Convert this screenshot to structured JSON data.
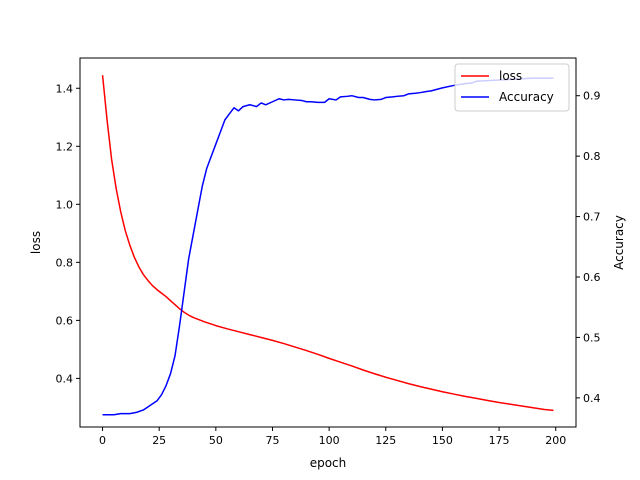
{
  "chart_data": {
    "type": "line",
    "title": "",
    "xlabel": "epoch",
    "ylabel": "loss",
    "y2label": "Accuracy",
    "xlim": [
      -9.95,
      208.95
    ],
    "ylim": [
      0.2325,
      1.5043
    ],
    "y2lim": [
      0.3518,
      0.9624
    ],
    "xticks": [
      0,
      25,
      50,
      75,
      100,
      125,
      150,
      175,
      200
    ],
    "yticks": [
      0.4,
      0.6,
      0.8,
      1.0,
      1.2,
      1.4
    ],
    "y2ticks": [
      0.4,
      0.5,
      0.6,
      0.7,
      0.8,
      0.9
    ],
    "xtick_labels": [
      "0",
      "25",
      "50",
      "75",
      "100",
      "125",
      "150",
      "175",
      "200"
    ],
    "ytick_labels": [
      "0.4",
      "0.6",
      "0.8",
      "1.0",
      "1.2",
      "1.4"
    ],
    "y2tick_labels": [
      "0.4",
      "0.5",
      "0.6",
      "0.7",
      "0.8",
      "0.9"
    ],
    "legend": {
      "placement": "top-right"
    },
    "series": [
      {
        "name": "loss",
        "axis": "left",
        "color": "#ff0000",
        "x": [
          0,
          2,
          4,
          6,
          8,
          10,
          12,
          14,
          16,
          18,
          20,
          22,
          24,
          26,
          28,
          30,
          32,
          34,
          36,
          38,
          40,
          45,
          50,
          55,
          60,
          65,
          70,
          75,
          80,
          85,
          90,
          95,
          100,
          105,
          110,
          115,
          120,
          125,
          130,
          135,
          140,
          145,
          150,
          155,
          160,
          165,
          170,
          175,
          180,
          185,
          190,
          195,
          199
        ],
        "y": [
          1.445,
          1.29,
          1.155,
          1.055,
          0.975,
          0.91,
          0.86,
          0.818,
          0.785,
          0.758,
          0.738,
          0.72,
          0.706,
          0.694,
          0.682,
          0.668,
          0.654,
          0.64,
          0.628,
          0.618,
          0.61,
          0.595,
          0.582,
          0.571,
          0.561,
          0.551,
          0.541,
          0.531,
          0.52,
          0.508,
          0.496,
          0.483,
          0.469,
          0.456,
          0.443,
          0.429,
          0.416,
          0.404,
          0.393,
          0.382,
          0.372,
          0.363,
          0.354,
          0.346,
          0.338,
          0.331,
          0.324,
          0.317,
          0.311,
          0.305,
          0.299,
          0.293,
          0.29
        ]
      },
      {
        "name": "Accuracy",
        "axis": "right",
        "color": "#0000ff",
        "x": [
          0,
          5,
          8,
          12,
          15,
          18,
          20,
          22,
          24,
          26,
          28,
          30,
          32,
          34,
          36,
          38,
          40,
          42,
          44,
          46,
          48,
          50,
          52,
          54,
          56,
          58,
          60,
          62,
          65,
          68,
          70,
          72,
          75,
          78,
          80,
          82,
          85,
          88,
          90,
          92,
          95,
          98,
          100,
          103,
          105,
          108,
          110,
          113,
          115,
          118,
          120,
          123,
          125,
          128,
          130,
          133,
          135,
          138,
          140,
          143,
          145,
          150,
          155,
          160,
          163,
          165,
          170,
          175,
          180,
          185,
          190,
          195,
          199
        ],
        "y": [
          0.372,
          0.372,
          0.374,
          0.374,
          0.376,
          0.38,
          0.385,
          0.39,
          0.395,
          0.405,
          0.42,
          0.44,
          0.47,
          0.52,
          0.575,
          0.63,
          0.67,
          0.71,
          0.75,
          0.78,
          0.8,
          0.82,
          0.84,
          0.86,
          0.87,
          0.88,
          0.875,
          0.882,
          0.885,
          0.882,
          0.888,
          0.885,
          0.89,
          0.895,
          0.893,
          0.894,
          0.893,
          0.892,
          0.89,
          0.89,
          0.889,
          0.889,
          0.895,
          0.893,
          0.898,
          0.899,
          0.9,
          0.897,
          0.897,
          0.894,
          0.893,
          0.894,
          0.897,
          0.898,
          0.899,
          0.9,
          0.903,
          0.904,
          0.905,
          0.907,
          0.908,
          0.913,
          0.917,
          0.92,
          0.921,
          0.924,
          0.925,
          0.926,
          0.927,
          0.928,
          0.929,
          0.929,
          0.929
        ]
      }
    ]
  }
}
